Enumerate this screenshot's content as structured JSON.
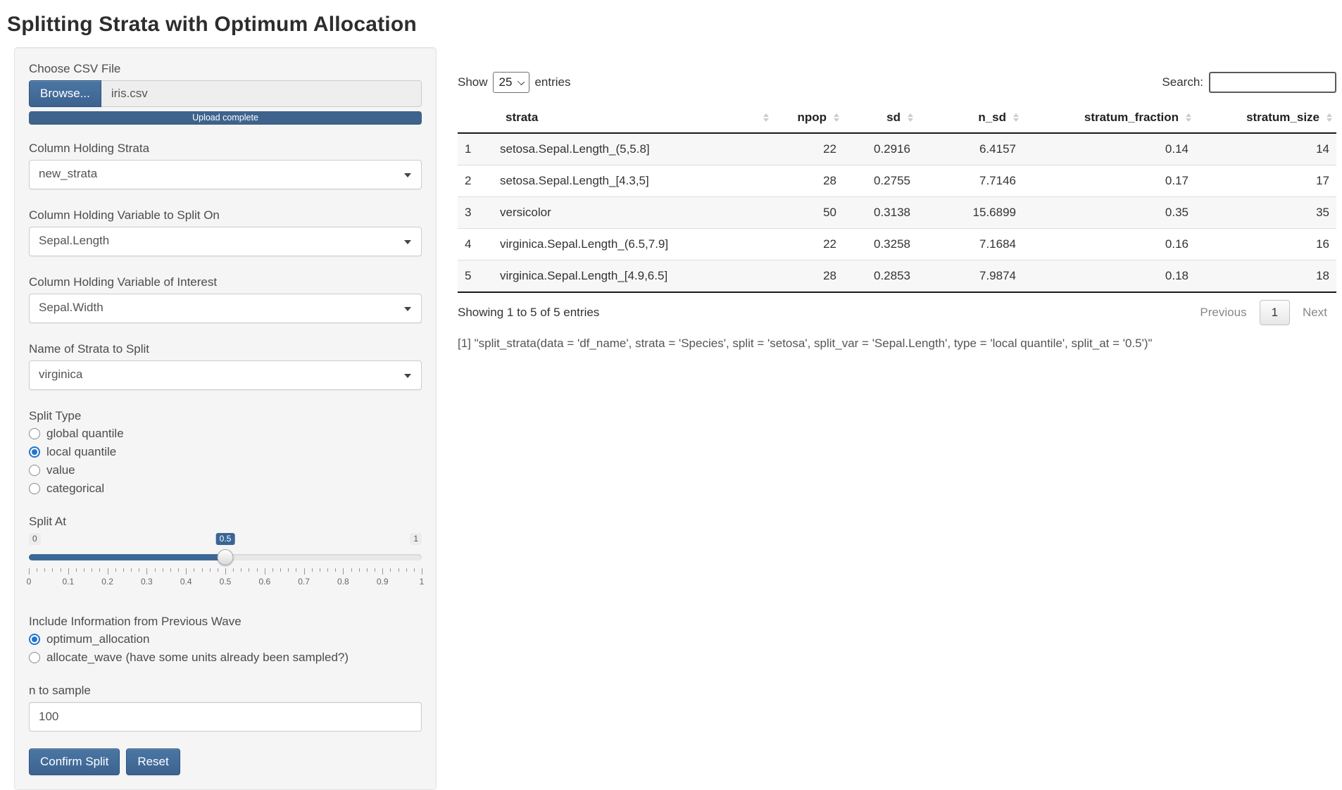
{
  "title": "Splitting Strata with Optimum Allocation",
  "theme": {
    "primary": "#3e648d",
    "primary_gradient_top": "#4a76a4",
    "radio_accent": "#2374cf",
    "well_bg": "#f5f5f5",
    "stripe_bg": "#f7f7f7"
  },
  "sidebar": {
    "file_input": {
      "label": "Choose CSV File",
      "browse_label": "Browse...",
      "file_name": "iris.csv",
      "upload_status": "Upload complete"
    },
    "selects": [
      {
        "label": "Column Holding Strata",
        "value": "new_strata"
      },
      {
        "label": "Column Holding Variable to Split On",
        "value": "Sepal.Length"
      },
      {
        "label": "Column Holding Variable of Interest",
        "value": "Sepal.Width"
      },
      {
        "label": "Name of Strata to Split",
        "value": "virginica"
      }
    ],
    "split_type": {
      "label": "Split Type",
      "options": [
        "global quantile",
        "local quantile",
        "value",
        "categorical"
      ],
      "selected": "local quantile"
    },
    "slider": {
      "label": "Split At",
      "min_label": "0",
      "max_label": "1",
      "value": 0.5,
      "value_label": "0.5",
      "tick_labels": [
        "0",
        "0.1",
        "0.2",
        "0.3",
        "0.4",
        "0.5",
        "0.6",
        "0.7",
        "0.8",
        "0.9",
        "1"
      ]
    },
    "wave": {
      "label": "Include Information from Previous Wave",
      "options": [
        "optimum_allocation",
        "allocate_wave (have some units already been sampled?)"
      ],
      "selected": "optimum_allocation"
    },
    "n_to_sample": {
      "label": "n to sample",
      "value": "100"
    },
    "buttons": {
      "confirm": "Confirm Split",
      "reset": "Reset"
    }
  },
  "main": {
    "show_label": "Show",
    "show_value": "25",
    "entries_label": "entries",
    "search_label": "Search:",
    "search_value": "",
    "table": {
      "columns": [
        "strata",
        "npop",
        "sd",
        "n_sd",
        "stratum_fraction",
        "stratum_size"
      ],
      "rows": [
        {
          "row": "1",
          "cells": [
            "setosa.Sepal.Length_(5,5.8]",
            "22",
            "0.2916",
            "6.4157",
            "0.14",
            "14"
          ]
        },
        {
          "row": "2",
          "cells": [
            "setosa.Sepal.Length_[4.3,5]",
            "28",
            "0.2755",
            "7.7146",
            "0.17",
            "17"
          ]
        },
        {
          "row": "3",
          "cells": [
            "versicolor",
            "50",
            "0.3138",
            "15.6899",
            "0.35",
            "35"
          ]
        },
        {
          "row": "4",
          "cells": [
            "virginica.Sepal.Length_(6.5,7.9]",
            "22",
            "0.3258",
            "7.1684",
            "0.16",
            "16"
          ]
        },
        {
          "row": "5",
          "cells": [
            "virginica.Sepal.Length_[4.9,6.5]",
            "28",
            "0.2853",
            "7.9874",
            "0.18",
            "18"
          ]
        }
      ]
    },
    "info": "Showing 1 to 5 of 5 entries",
    "pagination": {
      "previous": "Previous",
      "page": "1",
      "next": "Next"
    },
    "code_output": "[1] \"split_strata(data = 'df_name', strata = 'Species', split = 'setosa', split_var = 'Sepal.Length', type = 'local quantile', split_at = '0.5')\""
  }
}
